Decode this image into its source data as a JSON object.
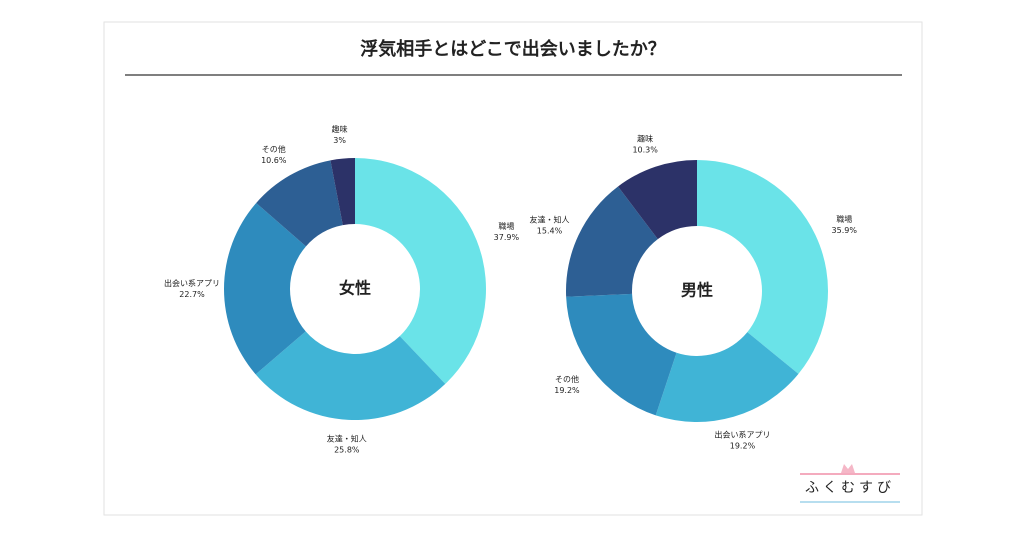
{
  "title": "浮気相手とはどこで出会いましたか？",
  "logo": "ふくむすび",
  "chart_data": [
    {
      "type": "donut",
      "center_label": "女性",
      "categories": [
        "職場",
        "友達・知人",
        "出会い系アプリ",
        "その他",
        "趣味"
      ],
      "values": [
        37.9,
        25.8,
        22.7,
        10.6,
        3
      ],
      "value_labels": [
        "37.9%",
        "25.8%",
        "22.7%",
        "10.6%",
        "3%"
      ],
      "colors": [
        "#6ae3e8",
        "#40b4d6",
        "#2e8bbd",
        "#2d5f94",
        "#2c3268"
      ]
    },
    {
      "type": "donut",
      "center_label": "男性",
      "categories": [
        "職場",
        "出会い系アプリ",
        "その他",
        "友達・知人",
        "趣味"
      ],
      "values": [
        35.9,
        19.2,
        19.2,
        15.4,
        10.3
      ],
      "value_labels": [
        "35.9%",
        "19.2%",
        "19.2%",
        "15.4%",
        "10.3%"
      ],
      "colors": [
        "#6ae3e8",
        "#40b4d6",
        "#2e8bbd",
        "#2d5f94",
        "#2c3268"
      ]
    }
  ]
}
